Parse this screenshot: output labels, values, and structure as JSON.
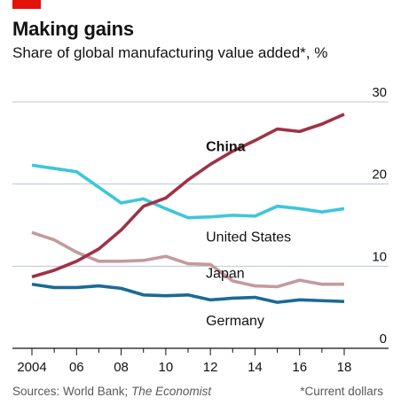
{
  "header": {
    "title": "Making gains",
    "subtitle": "Share of global manufacturing value added*, %"
  },
  "footer": {
    "source_prefix": "Sources: World Bank; ",
    "source_italic": "The Economist",
    "note": "*Current dollars"
  },
  "colors": {
    "china": "#9e3346",
    "us": "#3ec6d9",
    "japan": "#c49a9f",
    "germany": "#1b6a96",
    "grid": "#bcc7d1",
    "axis": "#121212",
    "accent": "#e3120b"
  },
  "chart_data": {
    "type": "line",
    "title": "Making gains",
    "subtitle": "Share of global manufacturing value added*, %",
    "x": [
      2004,
      2005,
      2006,
      2007,
      2008,
      2009,
      2010,
      2011,
      2012,
      2013,
      2014,
      2015,
      2016,
      2017,
      2018
    ],
    "x_tick_values": [
      2004,
      2006,
      2008,
      2010,
      2012,
      2014,
      2016,
      2018
    ],
    "x_tick_labels": [
      "2004",
      "06",
      "08",
      "10",
      "12",
      "14",
      "16",
      "18"
    ],
    "y_tick_values": [
      0,
      10,
      20,
      30
    ],
    "y_tick_labels": [
      "0",
      "10",
      "20",
      "30"
    ],
    "ylim": [
      0,
      30
    ],
    "y_axis_side": "right",
    "grid": true,
    "series": [
      {
        "name": "China",
        "key": "china",
        "bold": true,
        "values": [
          8.7,
          9.5,
          10.6,
          12.1,
          14.4,
          17.3,
          18.3,
          20.5,
          22.4,
          24.0,
          25.3,
          26.7,
          26.4,
          27.3,
          28.5
        ]
      },
      {
        "name": "United States",
        "key": "us",
        "bold": false,
        "values": [
          22.3,
          21.9,
          21.5,
          19.6,
          17.7,
          18.2,
          17.0,
          15.9,
          16.0,
          16.2,
          16.1,
          17.3,
          17.0,
          16.6,
          17.0
        ]
      },
      {
        "name": "Japan",
        "key": "japan",
        "bold": false,
        "values": [
          14.1,
          13.2,
          11.7,
          10.6,
          10.6,
          10.7,
          11.2,
          10.3,
          10.2,
          8.2,
          7.6,
          7.5,
          8.3,
          7.8,
          7.8
        ]
      },
      {
        "name": "Germany",
        "key": "germany",
        "bold": false,
        "values": [
          7.8,
          7.4,
          7.4,
          7.6,
          7.3,
          6.5,
          6.4,
          6.5,
          5.9,
          6.1,
          6.2,
          5.6,
          5.9,
          5.8,
          5.7
        ]
      }
    ]
  }
}
